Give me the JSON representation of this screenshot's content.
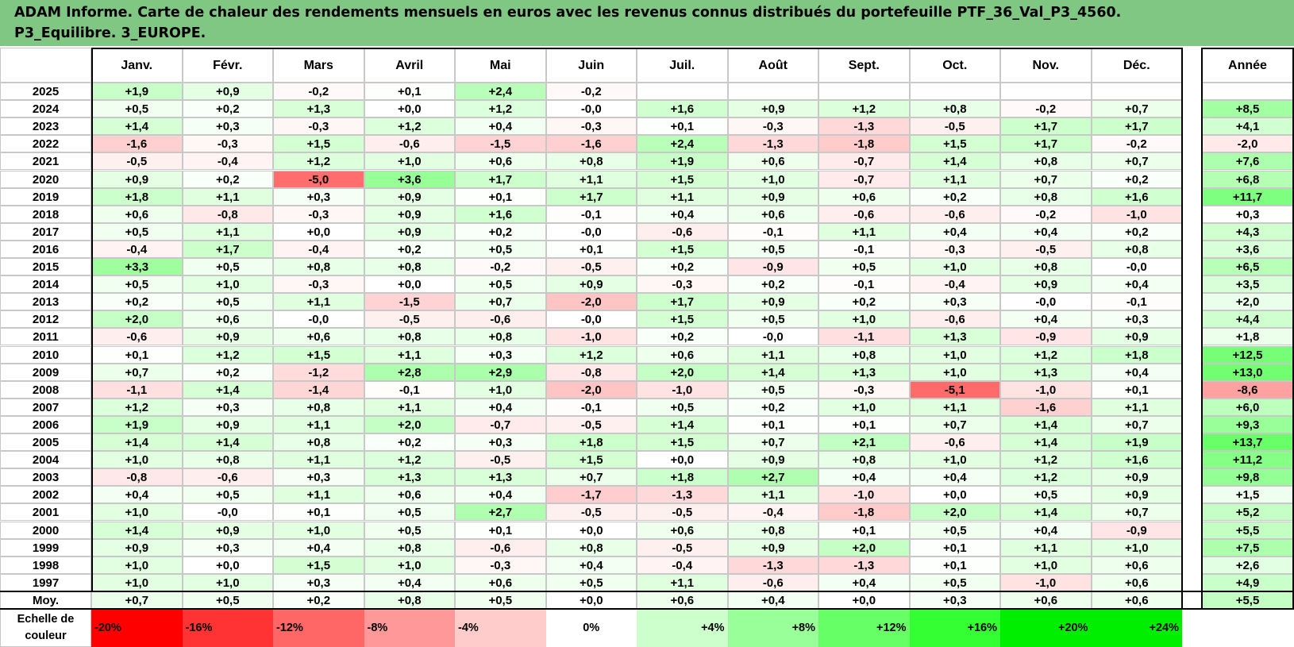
{
  "title_line1": "ADAM Informe. Carte de chaleur des rendements mensuels en euros avec les revenus connus distribués du portefeuille PTF_36_Val_P3_4560.",
  "title_line2": "P3_Equilibre. 3_EUROPE.",
  "corner_label": "",
  "colors": {
    "header_bg": "#81c784",
    "positive_max": "#00ee00",
    "negative_max": "#ff0000",
    "grid": "#c8c8c8",
    "border": "#000000"
  },
  "chart_data": {
    "type": "heatmap",
    "title": "ADAM Informe. Carte de chaleur des rendements mensuels en euros avec les revenus connus distribués du portefeuille PTF_36_Val_P3_4560. P3_Equilibre. 3_EUROPE.",
    "columns": [
      "Janv.",
      "Févr.",
      "Mars",
      "Avril",
      "Mai",
      "Juin",
      "Juil.",
      "Août",
      "Sept.",
      "Oct.",
      "Nov.",
      "Déc."
    ],
    "year_column": "Année",
    "rows": [
      {
        "year": "2025",
        "months": [
          "+1,9",
          "+0,9",
          "-0,2",
          "+0,1",
          "+2,4",
          "-0,2",
          "",
          "",
          "",
          "",
          "",
          ""
        ],
        "annual": ""
      },
      {
        "year": "2024",
        "months": [
          "+0,5",
          "+0,2",
          "+1,3",
          "+0,0",
          "+1,2",
          "-0,0",
          "+1,6",
          "+0,9",
          "+1,2",
          "+0,8",
          "-0,2",
          "+0,7"
        ],
        "annual": "+8,5"
      },
      {
        "year": "2023",
        "months": [
          "+1,4",
          "+0,3",
          "-0,3",
          "+1,2",
          "+0,4",
          "-0,3",
          "+0,1",
          "-0,3",
          "-1,3",
          "-0,5",
          "+1,7",
          "+1,7"
        ],
        "annual": "+4,1"
      },
      {
        "year": "2022",
        "months": [
          "-1,6",
          "-0,3",
          "+1,5",
          "-0,6",
          "-1,5",
          "-1,6",
          "+2,4",
          "-1,3",
          "-1,8",
          "+1,5",
          "+1,7",
          "-0,2"
        ],
        "annual": "-2,0"
      },
      {
        "year": "2021",
        "months": [
          "-0,5",
          "-0,4",
          "+1,2",
          "+1,0",
          "+0,6",
          "+0,8",
          "+1,9",
          "+0,6",
          "-0,7",
          "+1,4",
          "+0,8",
          "+0,7"
        ],
        "annual": "+7,6"
      },
      {
        "year": "2020",
        "months": [
          "+0,9",
          "+0,2",
          "-5,0",
          "+3,6",
          "+1,7",
          "+1,1",
          "+1,5",
          "+1,0",
          "-0,7",
          "+1,1",
          "+0,7",
          "+0,2"
        ],
        "annual": "+6,8"
      },
      {
        "year": "2019",
        "months": [
          "+1,8",
          "+1,1",
          "+0,3",
          "+0,9",
          "+0,1",
          "+1,7",
          "+1,1",
          "+0,9",
          "+0,6",
          "+0,2",
          "+0,8",
          "+1,6"
        ],
        "annual": "+11,7"
      },
      {
        "year": "2018",
        "months": [
          "+0,6",
          "-0,8",
          "-0,3",
          "+0,9",
          "+1,6",
          "-0,1",
          "+0,4",
          "+0,6",
          "-0,6",
          "-0,6",
          "-0,2",
          "-1,0"
        ],
        "annual": "+0,3"
      },
      {
        "year": "2017",
        "months": [
          "+0,5",
          "+1,1",
          "+0,0",
          "+0,9",
          "+0,2",
          "-0,0",
          "-0,6",
          "-0,1",
          "+1,1",
          "+0,4",
          "+0,4",
          "+0,2"
        ],
        "annual": "+4,3"
      },
      {
        "year": "2016",
        "months": [
          "-0,4",
          "+1,7",
          "-0,4",
          "+0,2",
          "+0,5",
          "+0,1",
          "+1,5",
          "+0,5",
          "-0,1",
          "-0,3",
          "-0,5",
          "+0,8"
        ],
        "annual": "+3,6"
      },
      {
        "year": "2015",
        "months": [
          "+3,3",
          "+0,5",
          "+0,8",
          "+0,8",
          "-0,2",
          "-0,5",
          "+0,2",
          "-0,9",
          "+0,5",
          "+1,0",
          "+0,8",
          "-0,0"
        ],
        "annual": "+6,5"
      },
      {
        "year": "2014",
        "months": [
          "+0,5",
          "+1,0",
          "-0,3",
          "+0,0",
          "+0,5",
          "+0,9",
          "-0,3",
          "+0,2",
          "-0,1",
          "-0,4",
          "+0,9",
          "+0,4"
        ],
        "annual": "+3,5"
      },
      {
        "year": "2013",
        "months": [
          "+0,2",
          "+0,5",
          "+1,1",
          "-1,5",
          "+0,7",
          "-2,0",
          "+1,7",
          "+0,9",
          "+0,2",
          "+0,3",
          "-0,0",
          "-0,1"
        ],
        "annual": "+2,0"
      },
      {
        "year": "2012",
        "months": [
          "+2,0",
          "+0,6",
          "-0,0",
          "-0,5",
          "-0,6",
          "-0,0",
          "+1,5",
          "+0,5",
          "+1,0",
          "-0,6",
          "+0,4",
          "+0,3"
        ],
        "annual": "+4,4"
      },
      {
        "year": "2011",
        "months": [
          "-0,6",
          "+0,9",
          "+0,6",
          "+0,8",
          "+0,8",
          "-1,0",
          "+0,2",
          "-0,0",
          "-1,1",
          "+1,3",
          "-0,9",
          "+0,9"
        ],
        "annual": "+1,8"
      },
      {
        "year": "2010",
        "months": [
          "+0,1",
          "+1,2",
          "+1,5",
          "+1,1",
          "+0,3",
          "+1,2",
          "+0,6",
          "+1,1",
          "+0,8",
          "+1,0",
          "+1,2",
          "+1,8"
        ],
        "annual": "+12,5"
      },
      {
        "year": "2009",
        "months": [
          "+0,7",
          "+0,2",
          "-1,2",
          "+2,8",
          "+2,9",
          "-0,8",
          "+2,0",
          "+1,4",
          "+1,3",
          "+1,0",
          "+1,3",
          "+0,4"
        ],
        "annual": "+13,0"
      },
      {
        "year": "2008",
        "months": [
          "-1,1",
          "+1,4",
          "-1,4",
          "-0,1",
          "+1,0",
          "-2,0",
          "-1,0",
          "+0,5",
          "-0,3",
          "-5,1",
          "-1,0",
          "+0,1"
        ],
        "annual": "-8,6"
      },
      {
        "year": "2007",
        "months": [
          "+1,2",
          "+0,3",
          "+0,8",
          "+1,1",
          "+0,4",
          "-0,1",
          "+0,5",
          "+0,2",
          "+1,0",
          "+1,1",
          "-1,6",
          "+1,1"
        ],
        "annual": "+6,0"
      },
      {
        "year": "2006",
        "months": [
          "+1,9",
          "+0,9",
          "+1,1",
          "+2,0",
          "-0,7",
          "-0,5",
          "+1,4",
          "+0,1",
          "+0,1",
          "+0,7",
          "+1,4",
          "+0,7"
        ],
        "annual": "+9,3"
      },
      {
        "year": "2005",
        "months": [
          "+1,4",
          "+1,4",
          "+0,8",
          "+0,2",
          "+0,3",
          "+1,8",
          "+1,5",
          "+0,7",
          "+2,1",
          "-0,6",
          "+1,4",
          "+1,9"
        ],
        "annual": "+13,7"
      },
      {
        "year": "2004",
        "months": [
          "+1,0",
          "+0,8",
          "+1,1",
          "+1,2",
          "-0,5",
          "+1,5",
          "+0,0",
          "+0,9",
          "+0,8",
          "+1,0",
          "+1,2",
          "+1,6"
        ],
        "annual": "+11,2"
      },
      {
        "year": "2003",
        "months": [
          "-0,8",
          "-0,6",
          "+0,3",
          "+1,3",
          "+1,3",
          "+0,7",
          "+1,8",
          "+2,7",
          "+0,4",
          "+0,4",
          "+1,2",
          "+0,9"
        ],
        "annual": "+9,8"
      },
      {
        "year": "2002",
        "months": [
          "+0,4",
          "+0,5",
          "+1,1",
          "+0,6",
          "+0,4",
          "-1,7",
          "-1,3",
          "+1,1",
          "-1,0",
          "+0,0",
          "+0,5",
          "+0,9"
        ],
        "annual": "+1,5"
      },
      {
        "year": "2001",
        "months": [
          "+1,0",
          "-0,0",
          "+0,1",
          "+0,5",
          "+2,7",
          "-0,5",
          "-0,5",
          "-0,4",
          "-1,8",
          "+2,0",
          "+1,4",
          "+0,7"
        ],
        "annual": "+5,2"
      },
      {
        "year": "2000",
        "months": [
          "+1,4",
          "+0,9",
          "+1,0",
          "+0,5",
          "+0,1",
          "+0,0",
          "+0,6",
          "+0,8",
          "+0,1",
          "+0,5",
          "+0,4",
          "-0,9"
        ],
        "annual": "+5,5"
      },
      {
        "year": "1999",
        "months": [
          "+0,9",
          "+0,3",
          "+0,4",
          "+0,8",
          "-0,6",
          "+0,8",
          "-0,5",
          "+0,9",
          "+2,0",
          "+0,1",
          "+1,1",
          "+1,0"
        ],
        "annual": "+7,5"
      },
      {
        "year": "1998",
        "months": [
          "+1,0",
          "+0,0",
          "+1,5",
          "+1,0",
          "-0,3",
          "+0,4",
          "-0,4",
          "-1,3",
          "-1,3",
          "+0,1",
          "+1,0",
          "+0,6"
        ],
        "annual": "+2,6"
      },
      {
        "year": "1997",
        "months": [
          "+1,0",
          "+1,0",
          "+0,3",
          "+0,4",
          "+0,6",
          "+0,5",
          "+1,1",
          "-0,6",
          "+0,4",
          "+0,5",
          "-1,0",
          "+0,6"
        ],
        "annual": "+4,9"
      }
    ],
    "average_row": {
      "label": "Moy.",
      "months": [
        "+0,7",
        "+0,5",
        "+0,2",
        "+0,8",
        "+0,5",
        "+0,0",
        "+0,6",
        "+0,4",
        "+0,0",
        "+0,3",
        "+0,6",
        "+0,6"
      ],
      "annual": "+5,5"
    },
    "color_scale": {
      "label_line1": "Echelle de",
      "label_line2": "couleur",
      "stops": [
        {
          "label": "-20%",
          "color": "#ff0000",
          "align": "left"
        },
        {
          "label": "-16%",
          "color": "#ff3333",
          "align": "left"
        },
        {
          "label": "-12%",
          "color": "#ff6666",
          "align": "left"
        },
        {
          "label": "-8%",
          "color": "#ff9999",
          "align": "left"
        },
        {
          "label": "-4%",
          "color": "#ffcccc",
          "align": "left"
        },
        {
          "label": "0%",
          "color": "#ffffff",
          "align": "center"
        },
        {
          "label": "+4%",
          "color": "#ccffcc",
          "align": "right"
        },
        {
          "label": "+8%",
          "color": "#99ff99",
          "align": "right"
        },
        {
          "label": "+12%",
          "color": "#66ff66",
          "align": "right"
        },
        {
          "label": "+16%",
          "color": "#33ff33",
          "align": "right"
        },
        {
          "label": "+20%",
          "color": "#00ee00",
          "align": "right"
        },
        {
          "label": "+24%",
          "color": "#00ee00",
          "align": "right"
        }
      ]
    }
  }
}
